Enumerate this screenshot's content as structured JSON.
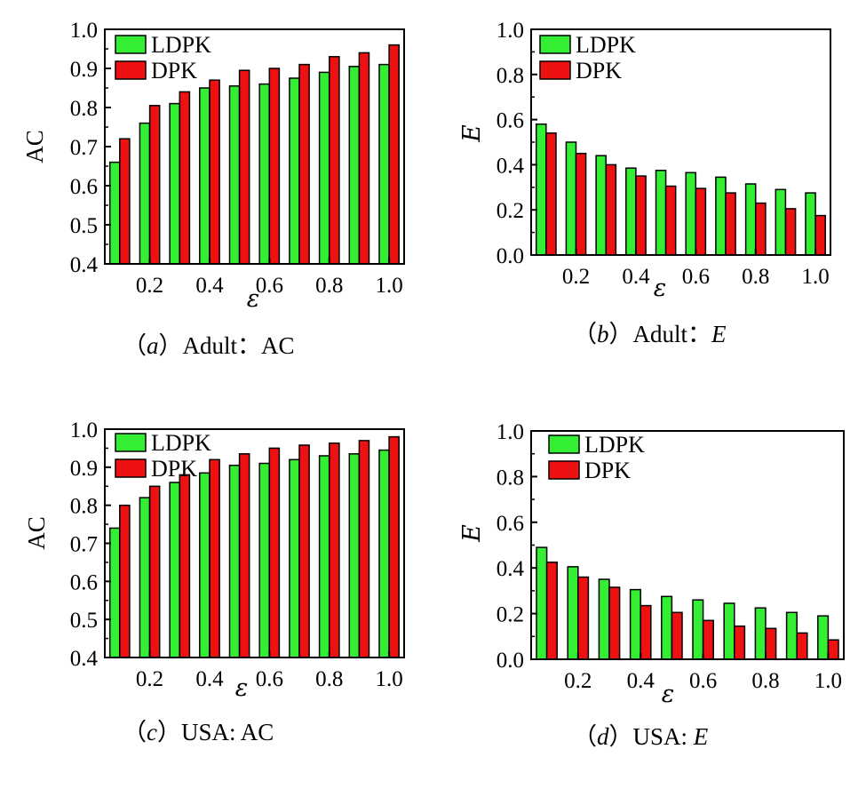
{
  "colors": {
    "LDPK": "#33ee33",
    "DPK": "#ee1111",
    "axis": "#000000"
  },
  "chart_data": [
    {
      "type": "bar",
      "caption": {
        "open": "（",
        "letter": "a",
        "close": "）",
        "text": "Adult：",
        "metric": "AC",
        "metric_italic": false
      },
      "xlabel": "ε",
      "ylabel": "AC",
      "ylabel_italic": false,
      "ylim": [
        0.4,
        1.0
      ],
      "yticks": [
        "0.4",
        "0.5",
        "0.6",
        "0.7",
        "0.8",
        "0.9",
        "1.0"
      ],
      "xticks": [
        "0.2",
        "0.4",
        "0.6",
        "0.8",
        "1.0"
      ],
      "categories": [
        0.1,
        0.2,
        0.3,
        0.4,
        0.5,
        0.6,
        0.7,
        0.8,
        0.9,
        1.0
      ],
      "legend_position": "top-left",
      "series": [
        {
          "name": "LDPK",
          "values": [
            0.66,
            0.76,
            0.81,
            0.85,
            0.855,
            0.86,
            0.875,
            0.89,
            0.905,
            0.91
          ]
        },
        {
          "name": "DPK",
          "values": [
            0.72,
            0.805,
            0.84,
            0.87,
            0.895,
            0.9,
            0.91,
            0.93,
            0.94,
            0.96
          ]
        }
      ]
    },
    {
      "type": "bar",
      "caption": {
        "open": "（",
        "letter": "b",
        "close": "）",
        "text": "Adult：",
        "metric": "E",
        "metric_italic": true
      },
      "xlabel": "ε",
      "ylabel": "E",
      "ylabel_italic": true,
      "ylim": [
        0.0,
        1.0
      ],
      "yticks": [
        "0.0",
        "0.2",
        "0.4",
        "0.6",
        "0.8",
        "1.0"
      ],
      "xticks": [
        "0.2",
        "0.4",
        "0.6",
        "0.8",
        "1.0"
      ],
      "categories": [
        0.1,
        0.2,
        0.3,
        0.4,
        0.5,
        0.6,
        0.7,
        0.8,
        0.9,
        1.0
      ],
      "legend_position": "top-left",
      "series": [
        {
          "name": "LDPK",
          "values": [
            0.58,
            0.5,
            0.44,
            0.385,
            0.375,
            0.365,
            0.345,
            0.315,
            0.29,
            0.275
          ]
        },
        {
          "name": "DPK",
          "values": [
            0.54,
            0.45,
            0.4,
            0.35,
            0.305,
            0.295,
            0.275,
            0.23,
            0.205,
            0.175
          ]
        }
      ]
    },
    {
      "type": "bar",
      "caption": {
        "open": "（",
        "letter": "c",
        "close": "）",
        "text": "USA: ",
        "metric": "AC",
        "metric_italic": false
      },
      "xlabel": "ε",
      "ylabel": "AC",
      "ylabel_italic": false,
      "ylim": [
        0.4,
        1.0
      ],
      "yticks": [
        "0.4",
        "0.5",
        "0.6",
        "0.7",
        "0.8",
        "0.9",
        "1.0"
      ],
      "xticks": [
        "0.2",
        "0.4",
        "0.6",
        "0.8",
        "1.0"
      ],
      "categories": [
        0.1,
        0.2,
        0.3,
        0.4,
        0.5,
        0.6,
        0.7,
        0.8,
        0.9,
        1.0
      ],
      "legend_position": "top-left",
      "series": [
        {
          "name": "LDPK",
          "values": [
            0.74,
            0.82,
            0.86,
            0.885,
            0.905,
            0.91,
            0.92,
            0.93,
            0.935,
            0.945
          ]
        },
        {
          "name": "DPK",
          "values": [
            0.8,
            0.85,
            0.88,
            0.92,
            0.935,
            0.95,
            0.958,
            0.963,
            0.97,
            0.98
          ]
        }
      ]
    },
    {
      "type": "bar",
      "caption": {
        "open": "（",
        "letter": "d",
        "close": "）",
        "text": "USA: ",
        "metric": "E",
        "metric_italic": true
      },
      "xlabel": "ε",
      "ylabel": "E",
      "ylabel_italic": true,
      "ylim": [
        0.0,
        1.0
      ],
      "yticks": [
        "0.0",
        "0.2",
        "0.4",
        "0.6",
        "0.8",
        "1.0"
      ],
      "xticks": [
        "0.2",
        "0.4",
        "0.6",
        "0.8",
        "1.0"
      ],
      "categories": [
        0.1,
        0.2,
        0.3,
        0.4,
        0.5,
        0.6,
        0.7,
        0.8,
        0.9,
        1.0
      ],
      "legend_position": "top-left",
      "series": [
        {
          "name": "LDPK",
          "values": [
            0.49,
            0.405,
            0.35,
            0.305,
            0.275,
            0.26,
            0.245,
            0.225,
            0.205,
            0.19
          ]
        },
        {
          "name": "DPK",
          "values": [
            0.425,
            0.36,
            0.315,
            0.235,
            0.205,
            0.17,
            0.145,
            0.135,
            0.115,
            0.085
          ]
        }
      ]
    }
  ]
}
